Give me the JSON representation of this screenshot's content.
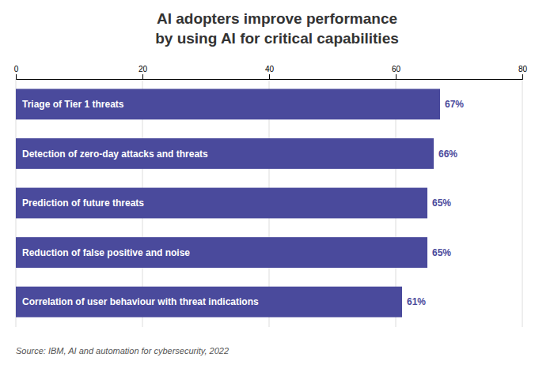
{
  "chart_data": {
    "type": "bar",
    "orientation": "horizontal",
    "title": "AI adopters improve performance\nby using AI for critical capabilities",
    "categories": [
      "Correlation of user behaviour with threat indications",
      "Reduction of false positive and noise",
      "Prediction of future threats",
      "Detection of zero-day attacks and threats",
      "Triage of Tier 1 threats"
    ],
    "values": [
      61,
      65,
      65,
      66,
      67
    ],
    "value_labels": [
      "61%",
      "65%",
      "65%",
      "66%",
      "67%"
    ],
    "data_labels": true,
    "color": "#4a4a9c",
    "xlim": [
      0,
      80
    ],
    "xticks": [
      0,
      20,
      40,
      60,
      80
    ],
    "grid": true,
    "annotations": [
      "Source:  IBM, AI and automation for cybersecurity, 2022"
    ]
  }
}
